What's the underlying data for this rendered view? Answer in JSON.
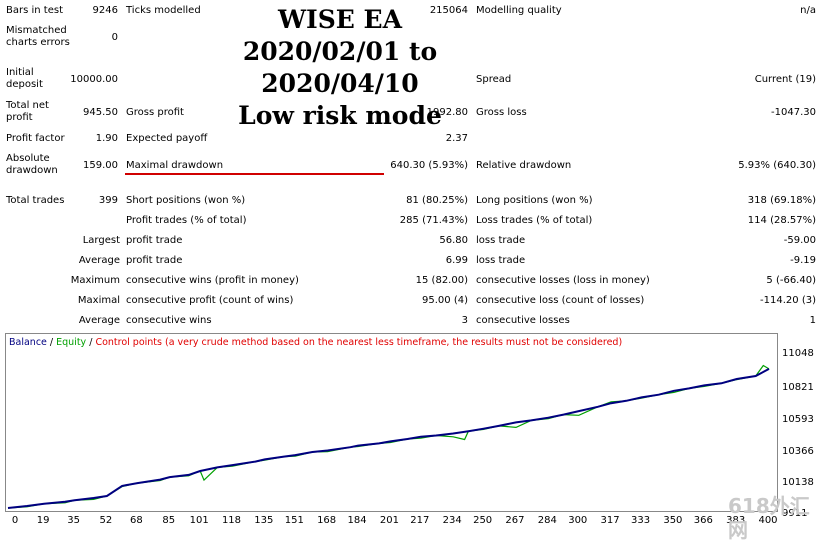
{
  "title": {
    "line1": "WISE EA",
    "line2": "2020/02/01 to 2020/04/10",
    "line3": "Low risk mode"
  },
  "report": {
    "bars_in_test": {
      "label": "Bars in test",
      "value": "9246"
    },
    "ticks_modelled": {
      "label": "Ticks modelled",
      "value": "215064"
    },
    "modelling_quality": {
      "label": "Modelling quality",
      "value": "n/a"
    },
    "mismatched": {
      "label": "Mismatched charts errors",
      "value": "0"
    },
    "initial_deposit": {
      "label": "Initial deposit",
      "value": "10000.00"
    },
    "spread": {
      "label": "Spread",
      "value": "Current (19)"
    },
    "total_net_profit": {
      "label": "Total net profit",
      "value": "945.50"
    },
    "gross_profit": {
      "label": "Gross profit",
      "value": "1992.80"
    },
    "gross_loss": {
      "label": "Gross loss",
      "value": "-1047.30"
    },
    "profit_factor": {
      "label": "Profit factor",
      "value": "1.90"
    },
    "expected_payoff": {
      "label": "Expected payoff",
      "value": "2.37"
    },
    "absolute_drawdown": {
      "label": "Absolute drawdown",
      "value": "159.00"
    },
    "maximal_drawdown": {
      "label": "Maximal drawdown",
      "value": "640.30 (5.93%)"
    },
    "relative_drawdown": {
      "label": "Relative drawdown",
      "value": "5.93% (640.30)"
    },
    "total_trades": {
      "label": "Total trades",
      "value": "399"
    },
    "short_positions": {
      "label": "Short positions (won %)",
      "value": "81 (80.25%)"
    },
    "long_positions": {
      "label": "Long positions (won %)",
      "value": "318 (69.18%)"
    },
    "profit_trades": {
      "label": "Profit trades (% of total)",
      "value": "285 (71.43%)"
    },
    "loss_trades": {
      "label": "Loss trades (% of total)",
      "value": "114 (28.57%)"
    },
    "largest": {
      "label": "Largest",
      "profit_label": "profit trade",
      "profit_value": "56.80",
      "loss_label": "loss trade",
      "loss_value": "-59.00"
    },
    "average": {
      "label": "Average",
      "profit_label": "profit trade",
      "profit_value": "6.99",
      "loss_label": "loss trade",
      "loss_value": "-9.19"
    },
    "maximum": {
      "label": "Maximum",
      "wins_label": "consecutive wins (profit in money)",
      "wins_value": "15 (82.00)",
      "losses_label": "consecutive losses (loss in money)",
      "losses_value": "5 (-66.40)"
    },
    "maximal": {
      "label": "Maximal",
      "profit_label": "consecutive profit (count of wins)",
      "profit_value": "95.00 (4)",
      "loss_label": "consecutive loss (count of losses)",
      "loss_value": "-114.20 (3)"
    },
    "average_consec": {
      "label": "Average",
      "wins_label": "consecutive wins",
      "wins_value": "3",
      "losses_label": "consecutive losses",
      "losses_value": "1"
    }
  },
  "legend": {
    "balance": "Balance",
    "sep1": " / ",
    "equity": "Equity",
    "sep2": " / ",
    "control": "Control points (a very crude method based on the nearest less timeframe, the results must not be considered)"
  },
  "watermark": "618外汇网",
  "colors": {
    "balance": "#000080",
    "equity": "#00a000",
    "control": "#e00000",
    "drawdown_underline": "#d00000"
  },
  "chart_data": {
    "type": "line",
    "y_ticks": [
      "11048",
      "10821",
      "10593",
      "10366",
      "10138",
      "9911"
    ],
    "x_ticks": [
      "0",
      "19",
      "35",
      "52",
      "68",
      "85",
      "101",
      "118",
      "135",
      "151",
      "168",
      "184",
      "201",
      "217",
      "234",
      "250",
      "267",
      "284",
      "300",
      "317",
      "333",
      "350",
      "366",
      "383",
      "400"
    ],
    "ylim": [
      9911,
      11048
    ],
    "xlim": [
      0,
      400
    ],
    "series": [
      {
        "name": "Balance",
        "x": [
          0,
          10,
          19,
          30,
          35,
          45,
          52,
          60,
          68,
          80,
          85,
          95,
          101,
          110,
          118,
          130,
          135,
          145,
          151,
          160,
          168,
          180,
          184,
          195,
          201,
          210,
          217,
          225,
          234,
          242,
          250,
          258,
          267,
          275,
          284,
          292,
          300,
          310,
          317,
          325,
          333,
          342,
          350,
          358,
          366,
          375,
          383,
          393,
          400
        ],
        "y": [
          9911,
          9926,
          9942,
          9958,
          9968,
          9985,
          10000,
          10075,
          10096,
          10122,
          10141,
          10157,
          10186,
          10213,
          10230,
          10256,
          10272,
          10293,
          10304,
          10327,
          10338,
          10363,
          10375,
          10391,
          10406,
          10424,
          10440,
          10450,
          10465,
          10482,
          10500,
          10521,
          10547,
          10562,
          10582,
          10605,
          10631,
          10663,
          10690,
          10708,
          10733,
          10753,
          10782,
          10800,
          10822,
          10838,
          10870,
          10892,
          10945
        ]
      },
      {
        "name": "Equity",
        "x": [
          0,
          10,
          19,
          30,
          35,
          45,
          52,
          60,
          68,
          80,
          85,
          95,
          101,
          103,
          110,
          118,
          130,
          135,
          145,
          151,
          160,
          168,
          180,
          184,
          195,
          201,
          210,
          217,
          225,
          234,
          240,
          242,
          250,
          258,
          267,
          275,
          284,
          292,
          300,
          310,
          317,
          325,
          333,
          342,
          350,
          358,
          366,
          375,
          383,
          393,
          397,
          400
        ],
        "y": [
          9911,
          9920,
          9942,
          9950,
          9968,
          9975,
          10000,
          10070,
          10096,
          10115,
          10141,
          10150,
          10186,
          10118,
          10213,
          10222,
          10256,
          10266,
          10293,
          10296,
          10327,
          10330,
          10363,
          10368,
          10391,
          10398,
          10424,
          10430,
          10450,
          10440,
          10420,
          10482,
          10495,
          10521,
          10510,
          10562,
          10575,
          10605,
          10600,
          10663,
          10700,
          10708,
          10728,
          10753,
          10770,
          10800,
          10815,
          10838,
          10865,
          10892,
          10970,
          10945
        ]
      }
    ]
  }
}
